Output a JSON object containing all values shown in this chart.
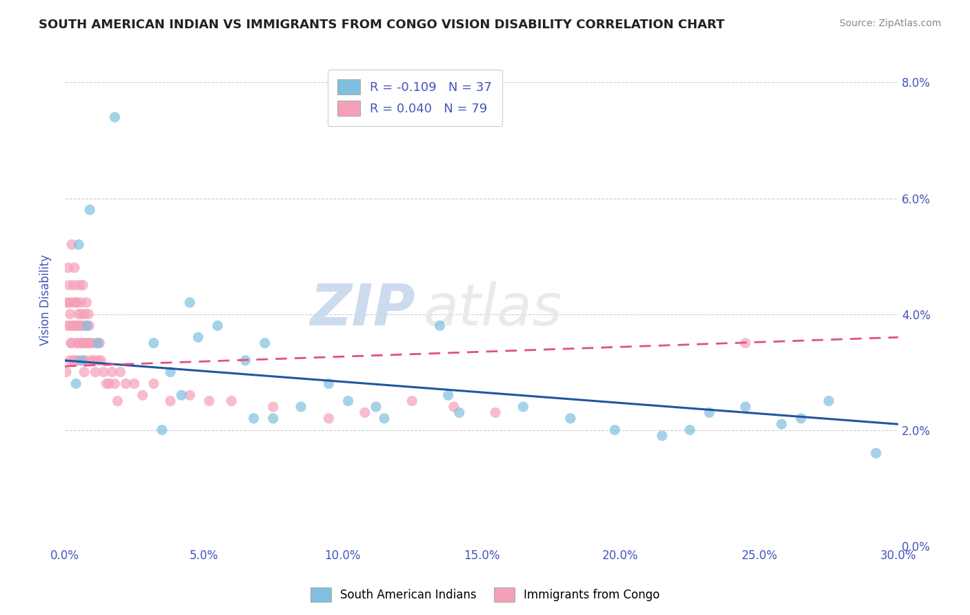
{
  "title": "SOUTH AMERICAN INDIAN VS IMMIGRANTS FROM CONGO VISION DISABILITY CORRELATION CHART",
  "source": "Source: ZipAtlas.com",
  "xlabel_ticks": [
    "0.0%",
    "5.0%",
    "10.0%",
    "15.0%",
    "20.0%",
    "25.0%",
    "30.0%"
  ],
  "xlabel_vals": [
    0.0,
    5.0,
    10.0,
    15.0,
    20.0,
    25.0,
    30.0
  ],
  "ylabel": "Vision Disability",
  "ylabel_ticks": [
    "0.0%",
    "2.0%",
    "4.0%",
    "6.0%",
    "8.0%"
  ],
  "ylabel_vals": [
    0.0,
    2.0,
    4.0,
    6.0,
    8.0
  ],
  "xlim": [
    0.0,
    30.0
  ],
  "ylim": [
    0.0,
    8.5
  ],
  "blue_color": "#7fbfdf",
  "pink_color": "#f5a0b8",
  "blue_line_color": "#2155a0",
  "pink_line_color": "#e05080",
  "legend_r_blue": "R = -0.109",
  "legend_n_blue": "N = 37",
  "legend_r_pink": "R = 0.040",
  "legend_n_pink": "N = 79",
  "label_blue": "South American Indians",
  "label_pink": "Immigrants from Congo",
  "watermark_zip": "ZIP",
  "watermark_atlas": "atlas",
  "blue_scatter_x": [
    1.8,
    0.5,
    0.8,
    1.2,
    0.6,
    0.4,
    0.9,
    3.2,
    4.8,
    5.5,
    3.8,
    4.5,
    6.5,
    7.2,
    8.5,
    10.2,
    11.5,
    13.8,
    14.2,
    16.5,
    18.2,
    19.8,
    22.5,
    23.2,
    24.5,
    25.8,
    26.5,
    13.5,
    4.2,
    6.8,
    9.5,
    11.2,
    3.5,
    7.5,
    21.5,
    27.5,
    29.2
  ],
  "blue_scatter_y": [
    7.4,
    5.2,
    3.8,
    3.5,
    3.2,
    2.8,
    5.8,
    3.5,
    3.6,
    3.8,
    3.0,
    4.2,
    3.2,
    3.5,
    2.4,
    2.5,
    2.2,
    2.6,
    2.3,
    2.4,
    2.2,
    2.0,
    2.0,
    2.3,
    2.4,
    2.1,
    2.2,
    3.8,
    2.6,
    2.2,
    2.8,
    2.4,
    2.0,
    2.2,
    1.9,
    2.5,
    1.6
  ],
  "pink_scatter_x": [
    0.05,
    0.08,
    0.1,
    0.12,
    0.15,
    0.18,
    0.2,
    0.22,
    0.25,
    0.28,
    0.3,
    0.32,
    0.35,
    0.38,
    0.4,
    0.42,
    0.45,
    0.48,
    0.5,
    0.52,
    0.55,
    0.58,
    0.6,
    0.62,
    0.65,
    0.68,
    0.7,
    0.72,
    0.75,
    0.78,
    0.8,
    0.82,
    0.85,
    0.88,
    0.9,
    0.95,
    1.0,
    1.05,
    1.1,
    1.15,
    1.2,
    1.25,
    1.3,
    1.4,
    1.5,
    1.6,
    1.7,
    1.8,
    1.9,
    2.0,
    2.2,
    2.5,
    2.8,
    3.2,
    3.8,
    4.5,
    5.2,
    6.0,
    7.5,
    9.5,
    10.8,
    12.5,
    14.0,
    15.5,
    0.25,
    0.3,
    0.15,
    0.2,
    0.35,
    0.45,
    0.55,
    0.65,
    0.75,
    0.85,
    0.6,
    0.4,
    0.5,
    24.5,
    0.7
  ],
  "pink_scatter_y": [
    3.0,
    4.2,
    3.8,
    4.8,
    4.5,
    3.2,
    4.0,
    3.5,
    5.2,
    4.2,
    3.8,
    4.5,
    4.8,
    3.2,
    3.8,
    4.2,
    3.5,
    3.2,
    4.0,
    4.5,
    3.8,
    4.2,
    3.5,
    3.8,
    4.5,
    3.2,
    3.8,
    4.0,
    3.5,
    4.2,
    3.8,
    3.5,
    4.0,
    3.8,
    3.5,
    3.2,
    3.5,
    3.2,
    3.0,
    3.5,
    3.2,
    3.5,
    3.2,
    3.0,
    2.8,
    2.8,
    3.0,
    2.8,
    2.5,
    3.0,
    2.8,
    2.8,
    2.6,
    2.8,
    2.5,
    2.6,
    2.5,
    2.5,
    2.4,
    2.2,
    2.3,
    2.5,
    2.4,
    2.3,
    3.5,
    3.2,
    4.2,
    3.8,
    3.8,
    3.5,
    3.8,
    3.5,
    3.2,
    3.5,
    4.0,
    4.2,
    3.8,
    3.5,
    3.0
  ],
  "blue_trend_x": [
    0.0,
    30.0
  ],
  "blue_trend_y": [
    3.2,
    2.1
  ],
  "pink_trend_x": [
    0.0,
    30.0
  ],
  "pink_trend_y": [
    3.1,
    3.6
  ],
  "background_color": "#ffffff",
  "grid_color": "#cccccc",
  "title_color": "#222222",
  "axis_label_color": "#4455bb",
  "tick_label_color": "#4455bb"
}
